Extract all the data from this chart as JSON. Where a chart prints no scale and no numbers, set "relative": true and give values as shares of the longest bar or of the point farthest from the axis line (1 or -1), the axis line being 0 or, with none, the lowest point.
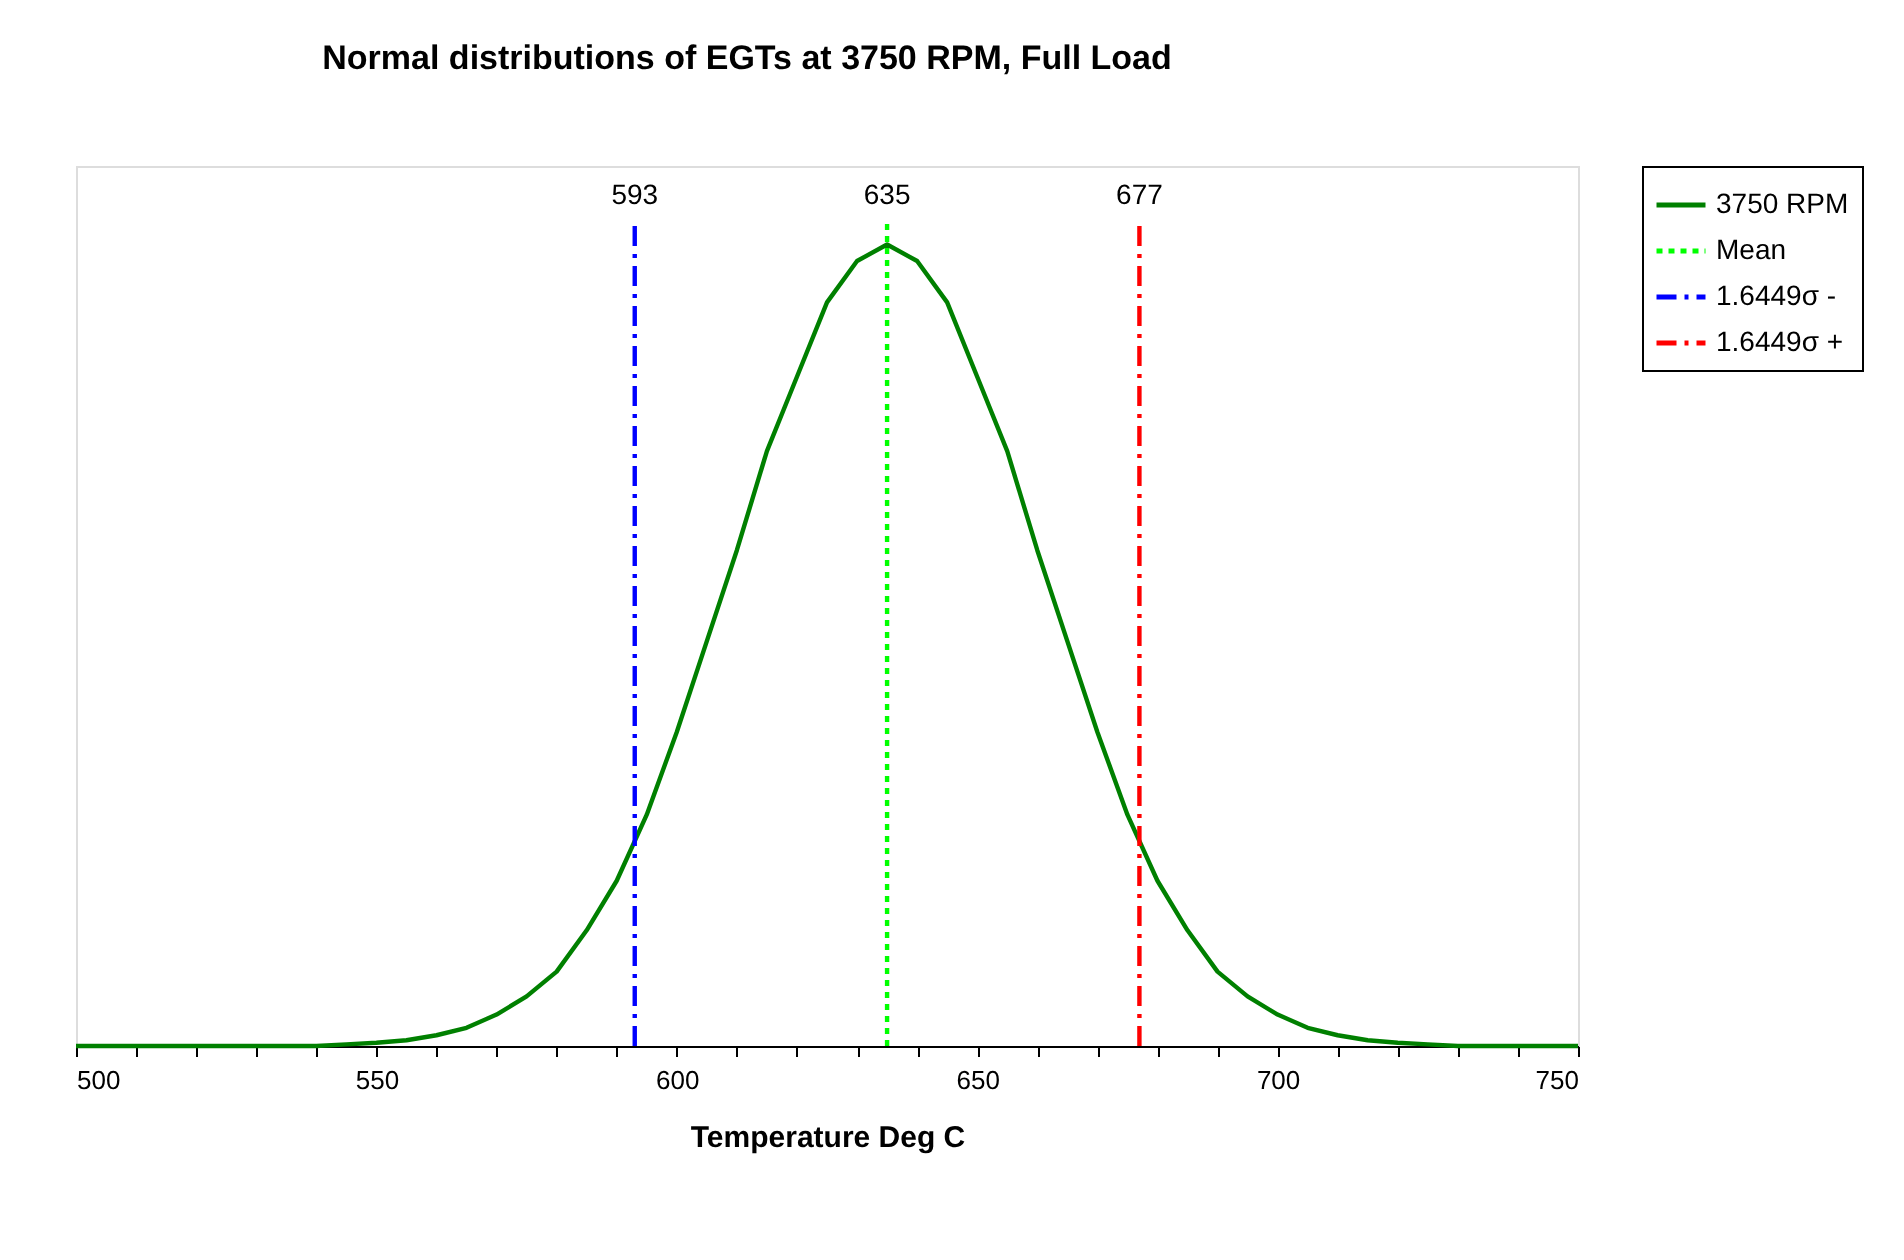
{
  "chart_data": {
    "type": "line",
    "title": "Normal distributions of EGTs at 3750 RPM, Full Load",
    "xlabel": "Temperature Deg C",
    "relative": true,
    "xlim": [
      500,
      750
    ],
    "xticks": [
      500,
      {
        "value": 510,
        "label": null
      },
      {
        "value": 520,
        "label": null
      },
      {
        "value": 530,
        "label": null
      },
      {
        "value": 540,
        "label": null
      },
      550,
      {
        "value": 560,
        "label": null
      },
      {
        "value": 570,
        "label": null
      },
      {
        "value": 580,
        "label": null
      },
      {
        "value": 590,
        "label": null
      },
      600,
      {
        "value": 610,
        "label": null
      },
      {
        "value": 620,
        "label": null
      },
      {
        "value": 630,
        "label": null
      },
      {
        "value": 640,
        "label": null
      },
      650,
      {
        "value": 660,
        "label": null
      },
      {
        "value": 670,
        "label": null
      },
      {
        "value": 680,
        "label": null
      },
      {
        "value": 690,
        "label": null
      },
      700,
      {
        "value": 710,
        "label": null
      },
      {
        "value": 720,
        "label": null
      },
      {
        "value": 730,
        "label": null
      },
      {
        "value": 740,
        "label": null
      },
      750
    ],
    "series": [
      {
        "name": "3750 RPM",
        "color": "#008000",
        "line_style": "solid",
        "x": [
          500,
          505,
          510,
          515,
          520,
          525,
          530,
          535,
          540,
          545,
          550,
          555,
          560,
          565,
          570,
          575,
          580,
          585,
          590,
          595,
          600,
          605,
          610,
          615,
          620,
          625,
          630,
          635,
          640,
          645,
          650,
          655,
          660,
          665,
          670,
          675,
          680,
          685,
          690,
          695,
          700,
          705,
          710,
          715,
          720,
          725,
          730,
          735,
          740,
          745,
          750
        ],
        "values": [
          0,
          0,
          0,
          0,
          0,
          0,
          0,
          0,
          0,
          0.002,
          0.004,
          0.007,
          0.013,
          0.022,
          0.038,
          0.06,
          0.09,
          0.14,
          0.2,
          0.28,
          0.38,
          0.49,
          0.6,
          0.72,
          0.81,
          0.9,
          0.95,
          0.97,
          0.95,
          0.9,
          0.81,
          0.72,
          0.6,
          0.49,
          0.38,
          0.28,
          0.2,
          0.14,
          0.09,
          0.06,
          0.038,
          0.022,
          0.013,
          0.007,
          0.004,
          0.002,
          0,
          0,
          0,
          0,
          0
        ]
      },
      {
        "name": "Mean",
        "color": "#00ff00",
        "line_style": "dotted",
        "x": [
          635,
          635
        ],
        "values": [
          0,
          1
        ]
      },
      {
        "name": "1.6449σ -",
        "color": "#0000ff",
        "line_style": "dashed",
        "x": [
          593,
          593
        ],
        "values": [
          0,
          1
        ]
      },
      {
        "name": "1.6449σ +",
        "color": "#ff0000",
        "line_style": "dashed",
        "x": [
          677,
          677
        ],
        "values": [
          0,
          1
        ]
      }
    ],
    "annotations": [
      {
        "text": "593",
        "x": 593,
        "y": 1
      },
      {
        "text": "635",
        "x": 635,
        "y": 1
      },
      {
        "text": "677",
        "x": 677,
        "y": 1
      }
    ],
    "grid": false,
    "legend": "right"
  }
}
